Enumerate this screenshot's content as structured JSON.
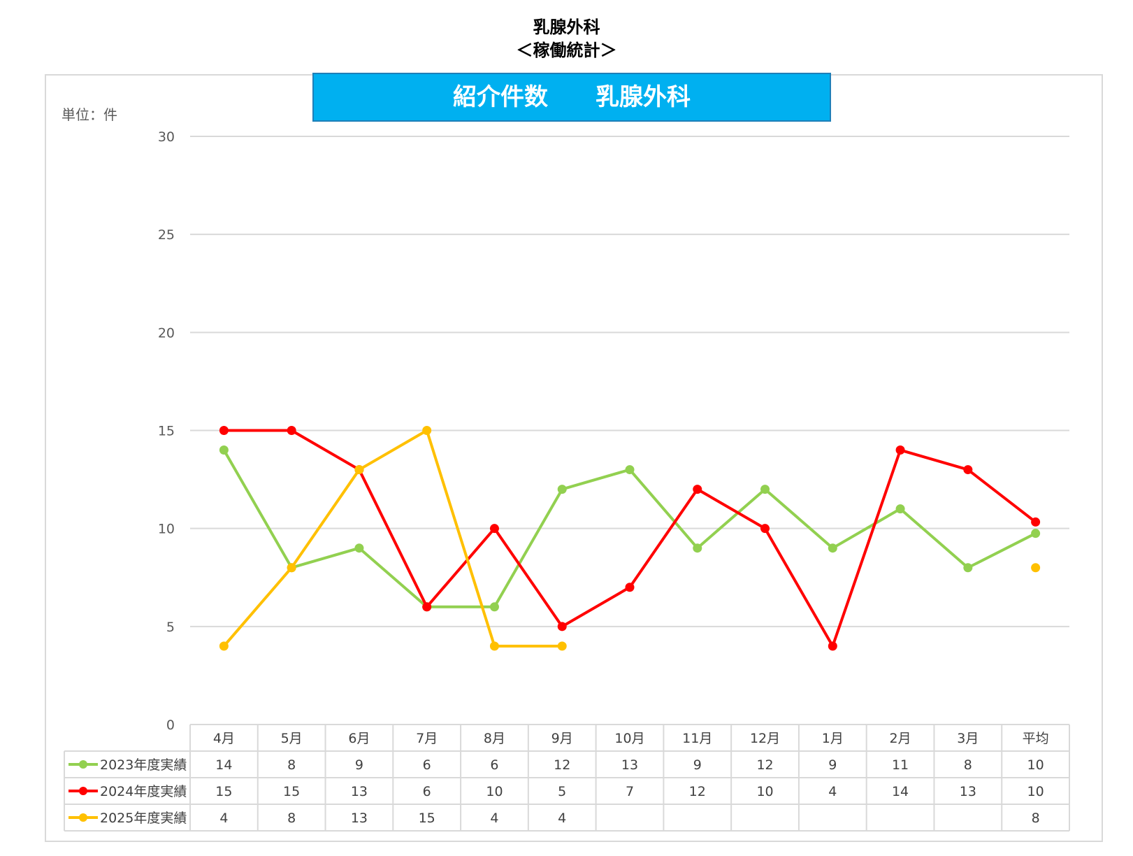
{
  "page": {
    "title_line1": "乳腺外科",
    "title_line2": "＜稼働統計＞"
  },
  "chart_data": {
    "type": "line",
    "title": "紹介件数　　乳腺外科",
    "unit_label": "単位：件",
    "categories": [
      "4月",
      "5月",
      "6月",
      "7月",
      "8月",
      "9月",
      "10月",
      "11月",
      "12月",
      "1月",
      "2月",
      "3月",
      "平均"
    ],
    "ylim": [
      0,
      30
    ],
    "yticks": [
      0,
      5,
      10,
      15,
      20,
      25,
      30
    ],
    "grid": true,
    "legend": "data-table-left",
    "series": [
      {
        "name": "2023年度実績",
        "color": "#92d050",
        "values": [
          14,
          8,
          9,
          6,
          6,
          12,
          13,
          9,
          12,
          9,
          11,
          8,
          9.75
        ],
        "labels": [
          "14",
          "8",
          "9",
          "6",
          "6",
          "12",
          "13",
          "9",
          "12",
          "9",
          "11",
          "8",
          "10"
        ]
      },
      {
        "name": "2024年度実績",
        "color": "#ff0000",
        "values": [
          15,
          15,
          13,
          6,
          10,
          5,
          7,
          12,
          10,
          4,
          14,
          13,
          10.33
        ],
        "labels": [
          "15",
          "15",
          "13",
          "6",
          "10",
          "5",
          "7",
          "12",
          "10",
          "4",
          "14",
          "13",
          "10"
        ]
      },
      {
        "name": "2025年度実績",
        "color": "#ffc000",
        "values": [
          4,
          8,
          13,
          15,
          4,
          4,
          null,
          null,
          null,
          null,
          null,
          null,
          8
        ],
        "labels": [
          "4",
          "8",
          "13",
          "15",
          "4",
          "4",
          "",
          "",
          "",
          "",
          "",
          "",
          "8"
        ]
      }
    ]
  }
}
